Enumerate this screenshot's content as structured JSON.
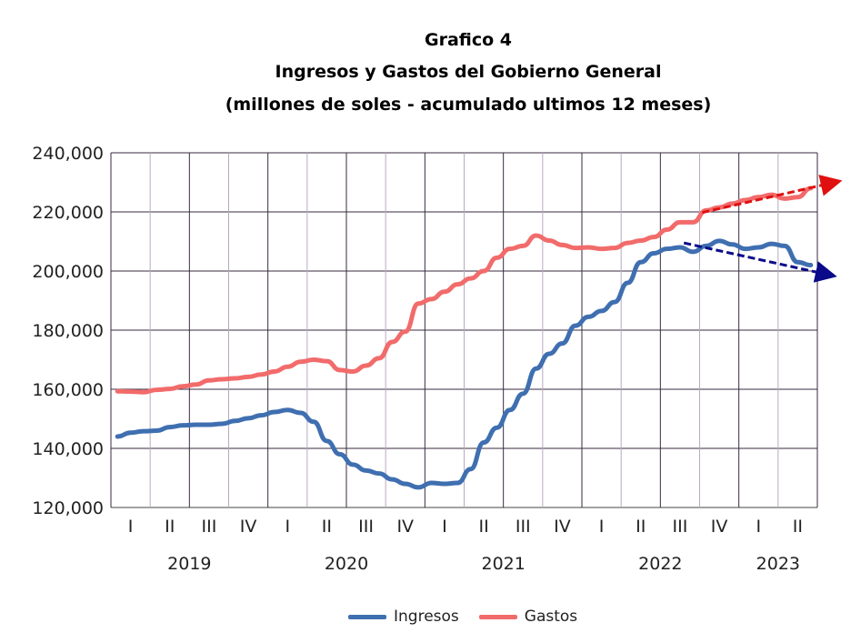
{
  "chart_data": {
    "type": "line",
    "title": "Grafico 4",
    "subtitle": "Ingresos y Gastos del Gobierno General",
    "subtitle2": "(millones de soles - acumulado ultimos 12 meses)",
    "ylim": [
      120000,
      240000
    ],
    "yticks": [
      "120,000",
      "140,000",
      "160,000",
      "180,000",
      "200,000",
      "220,000",
      "240,000"
    ],
    "quarters": [
      "I",
      "II",
      "III",
      "IV",
      "I",
      "II",
      "III",
      "IV",
      "I",
      "II",
      "III",
      "IV",
      "I",
      "II",
      "III",
      "IV",
      "I",
      "II"
    ],
    "years": [
      "2019",
      "2020",
      "2021",
      "2022",
      "2023"
    ],
    "x_unit": "month index from Jan 2019",
    "grid": true,
    "legend_position": "bottom",
    "series": [
      {
        "name": "Ingresos",
        "color": "#3f6fb0",
        "values": [
          144000,
          145300,
          145800,
          146000,
          147200,
          147800,
          148000,
          148000,
          148300,
          149300,
          150200,
          151200,
          152300,
          153000,
          152000,
          149000,
          142500,
          138000,
          134500,
          132500,
          131500,
          129500,
          128000,
          126800,
          128300,
          128000,
          128300,
          133000,
          142000,
          147000,
          153000,
          158500,
          167000,
          172000,
          175500,
          181500,
          184500,
          186500,
          189500,
          196000,
          203000,
          206000,
          207500,
          208000,
          206500,
          208500,
          210200,
          209000,
          207500,
          208000,
          209200,
          208500,
          203000,
          202000
        ]
      },
      {
        "name": "Gastos",
        "color": "#f26b6b",
        "values": [
          159300,
          159200,
          159000,
          159800,
          160100,
          161000,
          161600,
          163000,
          163400,
          163700,
          164200,
          165000,
          166000,
          167600,
          169300,
          170000,
          169500,
          166500,
          166000,
          168000,
          170500,
          176000,
          179500,
          189000,
          190500,
          193000,
          195500,
          197500,
          200000,
          204500,
          207500,
          208500,
          212000,
          210300,
          208800,
          207800,
          208000,
          207500,
          207800,
          209500,
          210300,
          211500,
          214000,
          216500,
          216500,
          220500,
          221500,
          222800,
          224000,
          225000,
          225800,
          224500,
          225000,
          228000
        ]
      }
    ],
    "trends": [
      {
        "series": "Gastos",
        "color": "#e01010",
        "x": [
          44.7,
          55.0
        ],
        "y": [
          219800,
          230200
        ]
      },
      {
        "series": "Ingresos",
        "color": "#0a0a8a",
        "x": [
          43.3,
          54.6
        ],
        "y": [
          209500,
          198500
        ]
      }
    ]
  }
}
